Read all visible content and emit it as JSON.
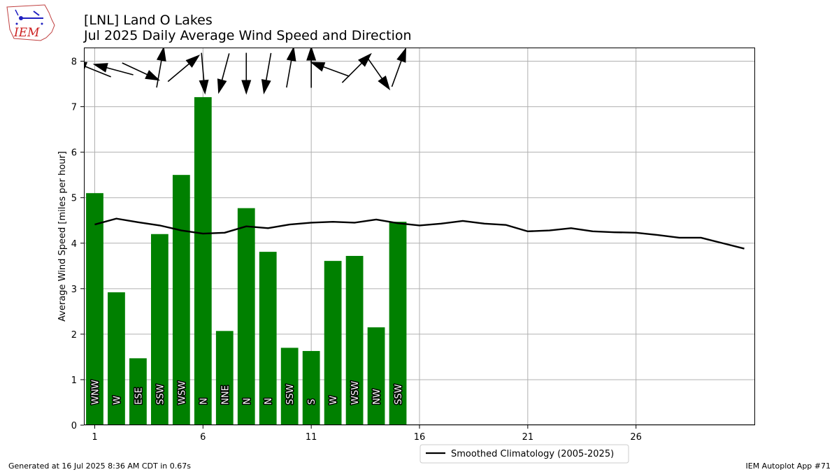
{
  "logo": {
    "text": "IEM"
  },
  "chart_data": {
    "type": "bar",
    "title": "[LNL] Land O Lakes",
    "subtitle": "Jul 2025 Daily Average Wind Speed and Direction",
    "xlabel": "",
    "ylabel": "Average Wind Speed [miles per hour]",
    "xlim": [
      0.5,
      31.5
    ],
    "ylim": [
      0,
      8.3
    ],
    "xticks": [
      1,
      6,
      11,
      16,
      21,
      26
    ],
    "yticks": [
      0,
      1,
      2,
      3,
      4,
      5,
      6,
      7,
      8
    ],
    "grid": true,
    "bar_color": "#008000",
    "days": [
      1,
      2,
      3,
      4,
      5,
      6,
      7,
      8,
      9,
      10,
      11,
      12,
      13,
      14,
      15
    ],
    "values": [
      5.1,
      2.92,
      1.47,
      4.2,
      5.5,
      7.21,
      2.07,
      4.77,
      3.81,
      1.7,
      1.63,
      3.61,
      3.72,
      2.15,
      4.47
    ],
    "directions": [
      "WNW",
      "W",
      "ESE",
      "SSW",
      "WSW",
      "N",
      "NNE",
      "N",
      "N",
      "SSW",
      "S",
      "W",
      "WSW",
      "NW",
      "SSW"
    ],
    "arrow_angles_deg": [
      112,
      105,
      295,
      190,
      230,
      355,
      15,
      0,
      10,
      190,
      180,
      110,
      225,
      325,
      200
    ],
    "climatology": {
      "name": "Smoothed Climatology (2005-2025)",
      "color": "#000000",
      "x": [
        1,
        2,
        3,
        4,
        5,
        6,
        7,
        8,
        9,
        10,
        11,
        12,
        13,
        14,
        15,
        16,
        17,
        18,
        19,
        20,
        21,
        22,
        23,
        24,
        25,
        26,
        27,
        28,
        29,
        30,
        31
      ],
      "y": [
        4.41,
        4.54,
        4.46,
        4.39,
        4.28,
        4.21,
        4.23,
        4.37,
        4.33,
        4.41,
        4.45,
        4.47,
        4.45,
        4.52,
        4.44,
        4.39,
        4.43,
        4.49,
        4.43,
        4.4,
        4.26,
        4.28,
        4.33,
        4.26,
        4.24,
        4.23,
        4.18,
        4.12,
        4.12,
        4.0,
        3.88
      ]
    },
    "legend_position": "bottom-center"
  },
  "footer": {
    "left": "Generated at 16 Jul 2025 8:36 AM CDT in 0.67s",
    "right": "IEM Autoplot App #71"
  }
}
